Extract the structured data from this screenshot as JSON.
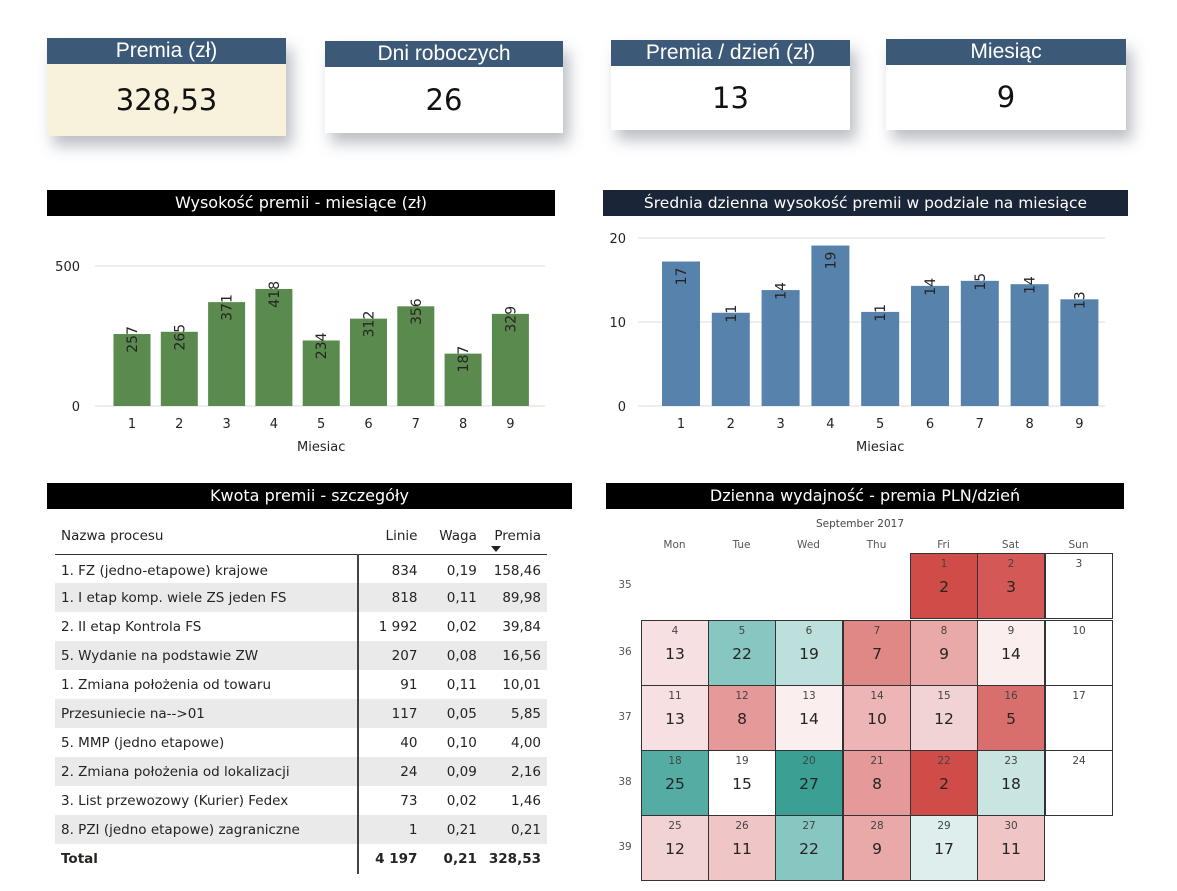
{
  "kpis": [
    {
      "label": "Premia (zł)",
      "value": "328,53"
    },
    {
      "label": "Dni roboczych",
      "value": "26"
    },
    {
      "label": "Premia / dzień (zł)",
      "value": "13"
    },
    {
      "label": "Miesiąc",
      "value": "9"
    }
  ],
  "sections": {
    "chart1_title": "Wysokość premii - miesiące (zł)",
    "chart2_title": "Średnia dzienna wysokość premii w podziale na miesiące",
    "table_title": "Kwota premii - szczegóły",
    "calendar_title": "Dzienna wydajność - premia PLN/dzień"
  },
  "chart_data": [
    {
      "type": "bar",
      "title": "Wysokość premii - miesiące (zł)",
      "xlabel": "Miesiac",
      "ylabel": "",
      "categories": [
        "1",
        "2",
        "3",
        "4",
        "5",
        "6",
        "7",
        "8",
        "9"
      ],
      "values": [
        257,
        265,
        371,
        418,
        234,
        312,
        356,
        187,
        329
      ],
      "data_labels": [
        "257",
        "265",
        "371",
        "418",
        "234",
        "312",
        "356",
        "187",
        "329"
      ],
      "yticks": [
        "0",
        "500"
      ],
      "ylim": [
        0,
        500
      ],
      "grid": true,
      "color": "#5a8a4e"
    },
    {
      "type": "bar",
      "title": "Średnia dzienna wysokość premii w podziale na miesiące",
      "xlabel": "Miesiac",
      "ylabel": "",
      "categories": [
        "1",
        "2",
        "3",
        "4",
        "5",
        "6",
        "7",
        "8",
        "9"
      ],
      "values": [
        17.2,
        11.1,
        13.8,
        19.1,
        11.2,
        14.3,
        14.9,
        14.5,
        12.7
      ],
      "data_labels": [
        "17",
        "11",
        "14",
        "19",
        "11",
        "14",
        "15",
        "14",
        "13"
      ],
      "yticks": [
        "0",
        "10",
        "20"
      ],
      "ylim": [
        0,
        20
      ],
      "grid": true,
      "color": "#5782ab"
    },
    {
      "type": "heatmap",
      "title": "Dzienna wydajność - premia PLN/dzień",
      "subtitle": "September 2017",
      "weekdays": [
        "Mon",
        "Tue",
        "Wed",
        "Thu",
        "Fri",
        "Sat",
        "Sun"
      ],
      "weeks": [
        "35",
        "36",
        "37",
        "38",
        "39"
      ],
      "days": [
        {
          "day": "1",
          "week": 0,
          "dow": 4,
          "value": "2",
          "color": "#d04c48"
        },
        {
          "day": "2",
          "week": 0,
          "dow": 5,
          "value": "3",
          "color": "#d45855"
        },
        {
          "day": "3",
          "week": 0,
          "dow": 6,
          "value": "",
          "color": "#ffffff"
        },
        {
          "day": "4",
          "week": 1,
          "dow": 0,
          "value": "13",
          "color": "#f6e0e1"
        },
        {
          "day": "5",
          "week": 1,
          "dow": 1,
          "value": "22",
          "color": "#88c6c1"
        },
        {
          "day": "6",
          "week": 1,
          "dow": 2,
          "value": "19",
          "color": "#bde0dd"
        },
        {
          "day": "7",
          "week": 1,
          "dow": 3,
          "value": "7",
          "color": "#e08886"
        },
        {
          "day": "8",
          "week": 1,
          "dow": 4,
          "value": "9",
          "color": "#e9a9a8"
        },
        {
          "day": "9",
          "week": 1,
          "dow": 5,
          "value": "14",
          "color": "#fbeeee"
        },
        {
          "day": "10",
          "week": 1,
          "dow": 6,
          "value": "",
          "color": "#ffffff"
        },
        {
          "day": "11",
          "week": 2,
          "dow": 0,
          "value": "13",
          "color": "#f6e0e1"
        },
        {
          "day": "12",
          "week": 2,
          "dow": 1,
          "value": "8",
          "color": "#e59a99"
        },
        {
          "day": "13",
          "week": 2,
          "dow": 2,
          "value": "14",
          "color": "#fbeeee"
        },
        {
          "day": "14",
          "week": 2,
          "dow": 3,
          "value": "10",
          "color": "#edb5b5"
        },
        {
          "day": "15",
          "week": 2,
          "dow": 4,
          "value": "12",
          "color": "#f2d3d3"
        },
        {
          "day": "16",
          "week": 2,
          "dow": 5,
          "value": "5",
          "color": "#d96f6c"
        },
        {
          "day": "17",
          "week": 2,
          "dow": 6,
          "value": "",
          "color": "#ffffff"
        },
        {
          "day": "18",
          "week": 3,
          "dow": 0,
          "value": "25",
          "color": "#55aca3"
        },
        {
          "day": "19",
          "week": 3,
          "dow": 1,
          "value": "15",
          "color": "#ffffff"
        },
        {
          "day": "20",
          "week": 3,
          "dow": 2,
          "value": "27",
          "color": "#39a093"
        },
        {
          "day": "21",
          "week": 3,
          "dow": 3,
          "value": "8",
          "color": "#e59a99"
        },
        {
          "day": "22",
          "week": 3,
          "dow": 4,
          "value": "2",
          "color": "#d04c48"
        },
        {
          "day": "23",
          "week": 3,
          "dow": 5,
          "value": "18",
          "color": "#c9e5e2"
        },
        {
          "day": "24",
          "week": 3,
          "dow": 6,
          "value": "",
          "color": "#ffffff"
        },
        {
          "day": "25",
          "week": 4,
          "dow": 0,
          "value": "12",
          "color": "#f2d3d3"
        },
        {
          "day": "26",
          "week": 4,
          "dow": 1,
          "value": "11",
          "color": "#efc5c5"
        },
        {
          "day": "27",
          "week": 4,
          "dow": 2,
          "value": "22",
          "color": "#88c6c1"
        },
        {
          "day": "28",
          "week": 4,
          "dow": 3,
          "value": "9",
          "color": "#e9a9a8"
        },
        {
          "day": "29",
          "week": 4,
          "dow": 4,
          "value": "17",
          "color": "#ddeeed"
        },
        {
          "day": "30",
          "week": 4,
          "dow": 5,
          "value": "11",
          "color": "#efc5c5"
        }
      ]
    }
  ],
  "table": {
    "columns": [
      "Nazwa procesu",
      "Linie",
      "Waga",
      "Premia"
    ],
    "sorted_column": "Premia",
    "rows": [
      [
        "1. FZ (jedno-etapowe) krajowe",
        "834",
        "0,19",
        "158,46"
      ],
      [
        "1. I etap komp. wiele ZS jeden FS",
        "818",
        "0,11",
        "89,98"
      ],
      [
        "2. II etap Kontrola FS",
        "1 992",
        "0,02",
        "39,84"
      ],
      [
        "5. Wydanie na podstawie ZW",
        "207",
        "0,08",
        "16,56"
      ],
      [
        "1. Zmiana położenia od towaru",
        "91",
        "0,11",
        "10,01"
      ],
      [
        "Przesuniecie na-->01",
        "117",
        "0,05",
        "5,85"
      ],
      [
        "5. MMP (jedno etapowe)",
        "40",
        "0,10",
        "4,00"
      ],
      [
        "2. Zmiana położenia od lokalizacji",
        "24",
        "0,09",
        "2,16"
      ],
      [
        "3. List przewozowy (Kurier) Fedex",
        "73",
        "0,02",
        "1,46"
      ],
      [
        "8. PZI (jedno etapowe) zagraniczne",
        "1",
        "0,21",
        "0,21"
      ]
    ],
    "total": [
      "Total",
      "4 197",
      "0,21",
      "328,53"
    ]
  }
}
